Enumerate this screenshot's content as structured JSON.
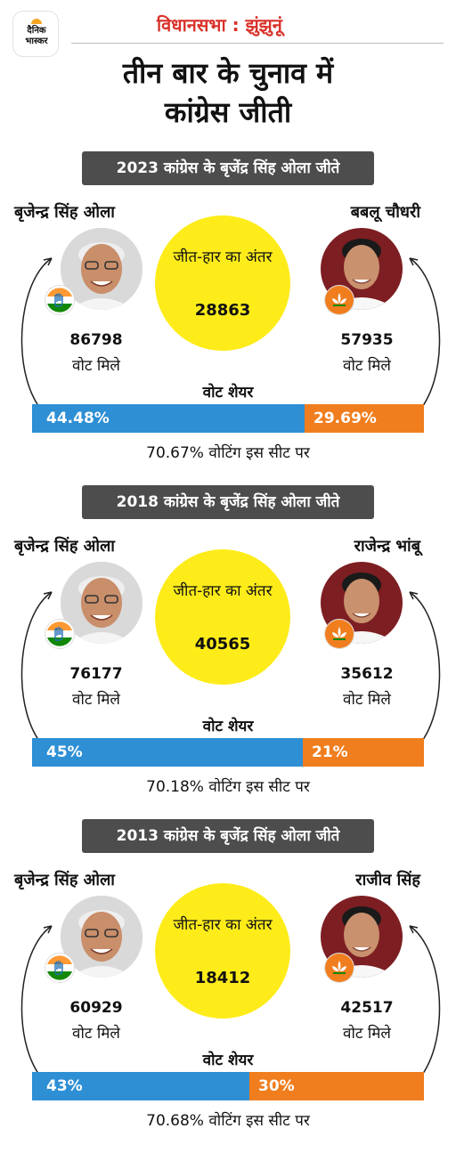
{
  "header": {
    "logo_text_1": "दैनिक",
    "logo_text_2": "भास्कर",
    "section": "विधानसभा : झुंझुनूं"
  },
  "title": {
    "line1": "तीन बार के चुनाव में",
    "line2": "कांग्रेस जीती"
  },
  "colors": {
    "accent_red": "#d8322a",
    "banner": "#4d4d4d",
    "margin_yellow": "#fdec1a",
    "congress_blue": "#2e8fd4",
    "bjp_orange": "#f07e1e"
  },
  "common": {
    "margin_label": "जीत-हार का अंतर",
    "votes_got": "वोट मिले",
    "vote_share": "वोट शेयर"
  },
  "elections": [
    {
      "banner": "2023 कांग्रेस के बृजेंद्र सिंह ओला जीते",
      "winner": {
        "name": "बृजेन्द्र सिंह ओला",
        "votes": "86798",
        "share": "44.48%",
        "share_value": 44.48,
        "party_icon": "congress-hand-icon"
      },
      "runner": {
        "name": "बबलू चौधरी",
        "votes": "57935",
        "share": "29.69%",
        "share_value": 29.69,
        "party_icon": "bjp-lotus-icon"
      },
      "margin": "28863",
      "turnout": "70.67% वोटिंग इस सीट पर"
    },
    {
      "banner": "2018  कांग्रेस के बृजेंद्र सिंह ओला जीते",
      "winner": {
        "name": "बृजेन्द्र सिंह ओला",
        "votes": "76177",
        "share": "45%",
        "share_value": 45,
        "party_icon": "congress-hand-icon"
      },
      "runner": {
        "name": "राजेन्द्र भांबू",
        "votes": "35612",
        "share": "21%",
        "share_value": 21,
        "party_icon": "bjp-lotus-icon"
      },
      "margin": "40565",
      "turnout": "70.18% वोटिंग इस सीट पर"
    },
    {
      "banner": "2013 कांग्रेस के बृजेंद्र सिंह ओला जीते",
      "winner": {
        "name": "बृजेन्द्र सिंह ओला",
        "votes": "60929",
        "share": "43%",
        "share_value": 43,
        "party_icon": "congress-hand-icon"
      },
      "runner": {
        "name": "राजीव सिंह",
        "votes": "42517",
        "share": "30%",
        "share_value": 30,
        "party_icon": "bjp-lotus-icon"
      },
      "margin": "18412",
      "turnout": "70.68% वोटिंग इस सीट पर"
    }
  ]
}
